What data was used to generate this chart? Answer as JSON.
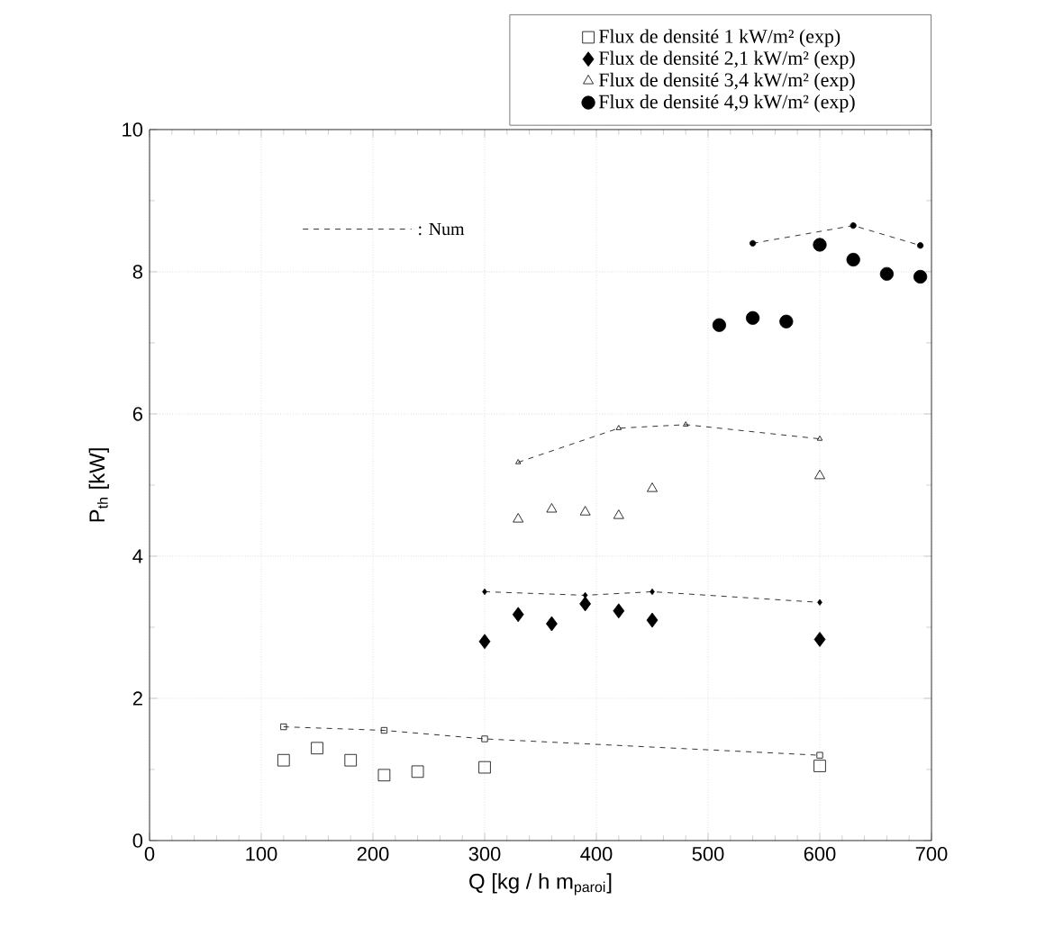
{
  "chart_data": {
    "type": "scatter",
    "xlabel": "Q [kg / h m$_{paroi}$]",
    "ylabel": "P$_{th}$ [kW]",
    "xlim": [
      0,
      700
    ],
    "ylim": [
      0,
      10
    ],
    "xticks": [
      0,
      100,
      200,
      300,
      400,
      500,
      600,
      700
    ],
    "yticks": [
      0,
      2,
      4,
      6,
      8,
      10
    ],
    "grid": true,
    "legend": "top right",
    "annotations": [
      ": Num"
    ],
    "series": [
      {
        "name": "Flux de densité 1 kW/m² (exp)",
        "marker": "square",
        "color": "#000000",
        "x": [
          120,
          150,
          180,
          210,
          240,
          300,
          600
        ],
        "values": [
          1.13,
          1.3,
          1.13,
          0.92,
          0.97,
          1.03,
          1.05
        ]
      },
      {
        "name": "Flux de densité 2,1 kW/m² (exp)",
        "marker": "diamond",
        "color": "#000000",
        "x": [
          300,
          330,
          360,
          390,
          420,
          450,
          600
        ],
        "values": [
          2.8,
          3.18,
          3.05,
          3.33,
          3.23,
          3.1,
          2.83
        ]
      },
      {
        "name": "Flux de densité 3,4 kW/m² (exp)",
        "marker": "triangle",
        "color": "#000000",
        "x": [
          330,
          360,
          390,
          420,
          450,
          600
        ],
        "values": [
          4.52,
          4.66,
          4.62,
          4.57,
          4.95,
          5.13
        ]
      },
      {
        "name": "Flux de densité 4,9 kW/m² (exp)",
        "marker": "circle",
        "color": "#000000",
        "x": [
          510,
          540,
          570,
          600,
          630,
          660,
          690
        ],
        "values": [
          7.25,
          7.35,
          7.3,
          8.38,
          8.17,
          7.97,
          7.93
        ]
      },
      {
        "type": "line",
        "marker": "square",
        "line_style": "dashed",
        "color": "#000000",
        "x": [
          120,
          210,
          300,
          600
        ],
        "values": [
          1.6,
          1.55,
          1.43,
          1.2
        ]
      },
      {
        "type": "line",
        "marker": "diamond",
        "line_style": "dashed",
        "color": "#000000",
        "x": [
          300,
          390,
          450,
          600
        ],
        "values": [
          3.5,
          3.45,
          3.5,
          3.35
        ]
      },
      {
        "type": "line",
        "marker": "triangle",
        "line_style": "dashed",
        "color": "#000000",
        "x": [
          330,
          420,
          480,
          600
        ],
        "values": [
          5.32,
          5.8,
          5.85,
          5.65
        ]
      },
      {
        "type": "line",
        "marker": "circle",
        "line_style": "dashed",
        "color": "#000000",
        "x": [
          540,
          630,
          690
        ],
        "values": [
          8.4,
          8.65,
          8.37
        ]
      }
    ]
  }
}
